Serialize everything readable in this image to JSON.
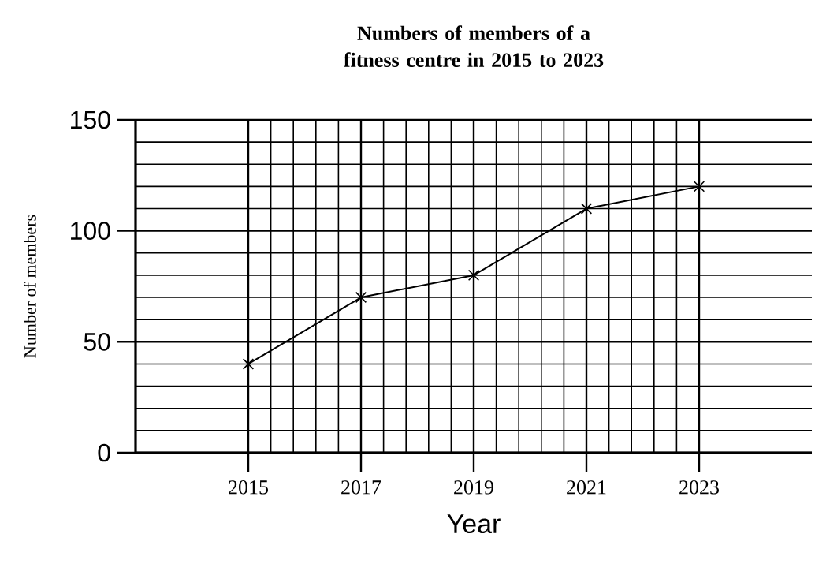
{
  "chart_data": {
    "type": "line",
    "title": "Numbers of members of a fitness centre in 2015 to 2023",
    "xlabel": "Year",
    "ylabel": "Number of members",
    "x": [
      2015,
      2017,
      2019,
      2021,
      2023
    ],
    "series": [
      {
        "color": "#000000",
        "values": [
          40,
          70,
          80,
          110,
          120
        ]
      }
    ],
    "xlim": [
      2013,
      2025
    ],
    "xticks": [
      2015,
      2017,
      2019,
      2021,
      2023
    ],
    "ylim": [
      0,
      150
    ],
    "yticks": [
      0,
      50,
      100,
      150
    ],
    "grid": true,
    "marker": "cross",
    "line_style": "solid"
  }
}
